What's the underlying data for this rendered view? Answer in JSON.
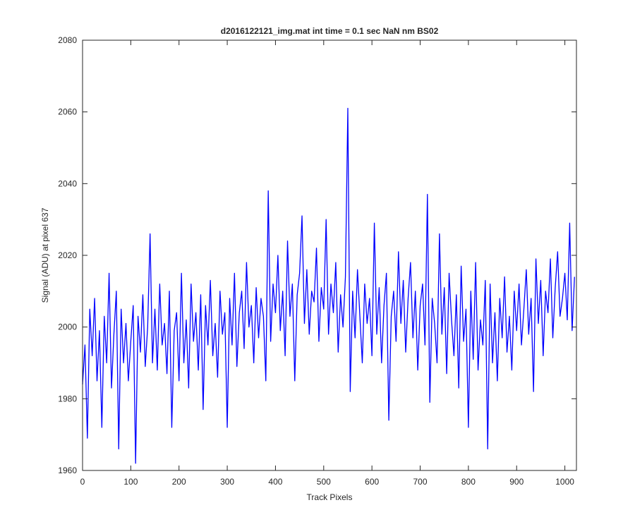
{
  "chart_data": {
    "type": "line",
    "title": "d2016122121_img.mat int time = 0.1 sec  NaN nm BS02",
    "xlabel": "Track Pixels",
    "ylabel": "Signal (ADU) at pixel 637",
    "xlim": [
      0,
      1024
    ],
    "ylim": [
      1960,
      2080
    ],
    "xticks": [
      0,
      100,
      200,
      300,
      400,
      500,
      600,
      700,
      800,
      900,
      1000
    ],
    "yticks": [
      1960,
      1980,
      2000,
      2020,
      2040,
      2060,
      2080
    ],
    "grid": false,
    "x": [
      0,
      5,
      10,
      15,
      20,
      25,
      30,
      35,
      40,
      45,
      50,
      55,
      60,
      65,
      70,
      75,
      80,
      85,
      90,
      95,
      100,
      105,
      110,
      115,
      120,
      125,
      130,
      135,
      140,
      145,
      150,
      155,
      160,
      165,
      170,
      175,
      180,
      185,
      190,
      195,
      200,
      205,
      210,
      215,
      220,
      225,
      230,
      235,
      240,
      245,
      250,
      255,
      260,
      265,
      270,
      275,
      280,
      285,
      290,
      295,
      300,
      305,
      310,
      315,
      320,
      325,
      330,
      335,
      340,
      345,
      350,
      355,
      360,
      365,
      370,
      375,
      380,
      385,
      390,
      395,
      400,
      405,
      410,
      415,
      420,
      425,
      430,
      435,
      440,
      445,
      450,
      455,
      460,
      465,
      470,
      475,
      480,
      485,
      490,
      495,
      500,
      505,
      510,
      515,
      520,
      525,
      530,
      535,
      540,
      545,
      550,
      555,
      560,
      565,
      570,
      575,
      580,
      585,
      590,
      595,
      600,
      605,
      610,
      615,
      620,
      625,
      630,
      635,
      640,
      645,
      650,
      655,
      660,
      665,
      670,
      675,
      680,
      685,
      690,
      695,
      700,
      705,
      710,
      715,
      720,
      725,
      730,
      735,
      740,
      745,
      750,
      755,
      760,
      765,
      770,
      775,
      780,
      785,
      790,
      795,
      800,
      805,
      810,
      815,
      820,
      825,
      830,
      835,
      840,
      845,
      850,
      855,
      860,
      865,
      870,
      875,
      880,
      885,
      890,
      895,
      900,
      905,
      910,
      915,
      920,
      925,
      930,
      935,
      940,
      945,
      950,
      955,
      960,
      965,
      970,
      975,
      980,
      985,
      990,
      995,
      1000,
      1005,
      1010,
      1015,
      1020
    ],
    "series": [
      {
        "name": "signal",
        "color": "#0000ff",
        "values": [
          1984,
          1995,
          1969,
          2005,
          1992,
          2008,
          1985,
          1999,
          1972,
          2003,
          1990,
          2015,
          1983,
          1998,
          2010,
          1966,
          2005,
          1990,
          2001,
          1985,
          1996,
          2006,
          1962,
          2003,
          1993,
          2009,
          1989,
          2000,
          2026,
          1990,
          2005,
          1988,
          2012,
          1995,
          2001,
          1987,
          2010,
          1972,
          1999,
          2004,
          1985,
          2015,
          1990,
          2002,
          1983,
          2012,
          1996,
          2004,
          1988,
          2009,
          1977,
          2006,
          1995,
          2013,
          1992,
          2001,
          1986,
          2010,
          1998,
          2004,
          1972,
          2008,
          1995,
          2015,
          1989,
          2004,
          2010,
          1994,
          2018,
          2000,
          2006,
          1990,
          2011,
          1997,
          2008,
          2003,
          1985,
          2038,
          1996,
          2012,
          2004,
          2020,
          1999,
          2010,
          1992,
          2024,
          2003,
          2012,
          1985,
          2009,
          2015,
          2031,
          2001,
          2016,
          1998,
          2010,
          2007,
          2022,
          1996,
          2011,
          2005,
          2030,
          1998,
          2012,
          2004,
          2018,
          1993,
          2009,
          2000,
          2014,
          2061,
          1982,
          2010,
          1997,
          2016,
          2003,
          1990,
          2012,
          2001,
          2008,
          1992,
          2029,
          1998,
          2011,
          1990,
          2006,
          2015,
          1974,
          2003,
          2010,
          1996,
          2021,
          2001,
          2013,
          1993,
          2008,
          2018,
          1997,
          2010,
          1988,
          2006,
          2012,
          1995,
          2037,
          1979,
          2008,
          2001,
          1990,
          2026,
          1998,
          2011,
          1987,
          2015,
          2002,
          1992,
          2009,
          1983,
          2017,
          1996,
          2005,
          1972,
          2010,
          1991,
          2018,
          1988,
          2002,
          1995,
          2013,
          1966,
          2012,
          1990,
          2004,
          1985,
          2008,
          1997,
          2014,
          1993,
          2003,
          1988,
          2010,
          1999,
          2012,
          1995,
          2005,
          2016,
          1998,
          2008,
          1982,
          2019,
          2001,
          2013,
          1992,
          2010,
          2004,
          2019,
          1997,
          2011,
          2021,
          2003,
          2008,
          2015,
          2002,
          2029,
          1999,
          2014
        ]
      }
    ]
  }
}
